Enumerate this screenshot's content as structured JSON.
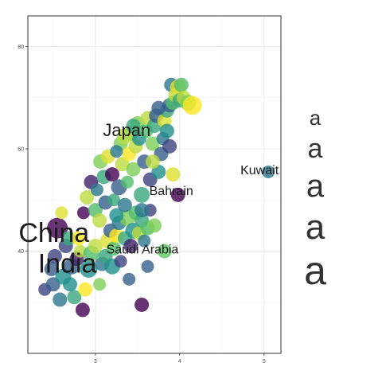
{
  "chart_data": {
    "type": "scatter",
    "title": "",
    "xlabel": "",
    "ylabel": "",
    "xlim": [
      2.2,
      5.2
    ],
    "ylim": [
      20,
      86
    ],
    "x_ticks": [
      3,
      4,
      5
    ],
    "y_ticks": [
      40,
      60,
      80
    ],
    "grid": true,
    "legend": {
      "position": "right",
      "glyph": "a",
      "entries": 5
    },
    "palette": [
      "#440154",
      "#3b528b",
      "#21908c",
      "#5dc863",
      "#fde725"
    ],
    "annotations": [
      {
        "text": "Kuwait",
        "x": 4.72,
        "y": 55.0,
        "size": 16
      },
      {
        "text": "Japan",
        "x": 3.09,
        "y": 62.5,
        "size": 22
      },
      {
        "text": "Bahrain",
        "x": 3.64,
        "y": 51.0,
        "size": 16
      },
      {
        "text": "China",
        "x": 2.09,
        "y": 41.8,
        "size": 34
      },
      {
        "text": "Saudi Arabia",
        "x": 3.13,
        "y": 39.5,
        "size": 16
      },
      {
        "text": "India",
        "x": 2.32,
        "y": 35.8,
        "size": 34
      }
    ],
    "points": [
      [
        2.55,
        44.5,
        0.0,
        13
      ],
      [
        2.4,
        32.5,
        0.2,
        8
      ],
      [
        2.5,
        33.5,
        0.3,
        9
      ],
      [
        2.58,
        30.5,
        0.4,
        9
      ],
      [
        2.62,
        35.0,
        0.5,
        10
      ],
      [
        2.65,
        41.0,
        0.2,
        9
      ],
      [
        2.72,
        37.0,
        0.3,
        10
      ],
      [
        2.75,
        31.0,
        0.6,
        9
      ],
      [
        2.78,
        38.5,
        0.1,
        9
      ],
      [
        2.82,
        40.0,
        0.9,
        8
      ],
      [
        2.85,
        28.5,
        0.0,
        9
      ],
      [
        2.88,
        32.5,
        1.0,
        9
      ],
      [
        2.92,
        36.5,
        0.5,
        11
      ],
      [
        2.95,
        39.5,
        0.7,
        10
      ],
      [
        3.0,
        41.0,
        0.9,
        9
      ],
      [
        3.05,
        33.5,
        0.8,
        8
      ],
      [
        3.08,
        37.5,
        0.4,
        9
      ],
      [
        3.12,
        39.0,
        0.6,
        9
      ],
      [
        3.15,
        42.0,
        0.95,
        10
      ],
      [
        3.18,
        44.0,
        0.3,
        9
      ],
      [
        3.2,
        37.0,
        0.5,
        10
      ],
      [
        3.22,
        40.5,
        0.7,
        9
      ],
      [
        3.25,
        43.0,
        1.0,
        9
      ],
      [
        3.28,
        45.5,
        0.4,
        9
      ],
      [
        3.3,
        38.0,
        0.2,
        8
      ],
      [
        3.35,
        42.5,
        0.6,
        9
      ],
      [
        3.38,
        46.5,
        0.8,
        10
      ],
      [
        3.4,
        34.5,
        0.3,
        8
      ],
      [
        3.42,
        41.0,
        0.1,
        9
      ],
      [
        3.45,
        44.0,
        0.5,
        10
      ],
      [
        3.48,
        47.5,
        0.7,
        9
      ],
      [
        3.52,
        43.5,
        0.9,
        9
      ],
      [
        3.55,
        46.0,
        0.6,
        9
      ],
      [
        3.58,
        42.0,
        0.4,
        8
      ],
      [
        3.62,
        44.5,
        0.7,
        9
      ],
      [
        3.65,
        48.0,
        0.2,
        8
      ],
      [
        3.7,
        45.0,
        0.8,
        9
      ],
      [
        3.55,
        29.5,
        0.0,
        9
      ],
      [
        3.62,
        37.0,
        0.3,
        8
      ],
      [
        3.82,
        40.0,
        0.75,
        9
      ],
      [
        2.48,
        36.5,
        0.3,
        9
      ],
      [
        2.52,
        39.0,
        0.2,
        9
      ],
      [
        2.6,
        47.5,
        0.95,
        8
      ],
      [
        2.68,
        42.5,
        0.6,
        9
      ],
      [
        2.7,
        33.5,
        0.5,
        9
      ],
      [
        2.8,
        42.5,
        1.0,
        9
      ],
      [
        2.86,
        47.5,
        0.0,
        8
      ],
      [
        2.9,
        50.5,
        0.9,
        9
      ],
      [
        2.95,
        53.5,
        0.1,
        9
      ],
      [
        3.0,
        48.0,
        0.7,
        9
      ],
      [
        3.02,
        52.0,
        0.4,
        8
      ],
      [
        3.05,
        46.0,
        0.9,
        9
      ],
      [
        3.06,
        57.5,
        0.8,
        9
      ],
      [
        3.1,
        54.5,
        0.6,
        9
      ],
      [
        3.12,
        49.5,
        0.3,
        9
      ],
      [
        3.15,
        58.5,
        0.95,
        9
      ],
      [
        3.2,
        55.0,
        0.0,
        9
      ],
      [
        3.22,
        50.0,
        0.6,
        8
      ],
      [
        3.25,
        47.0,
        0.5,
        9
      ],
      [
        3.28,
        52.5,
        0.3,
        10
      ],
      [
        3.3,
        61.0,
        0.8,
        9
      ],
      [
        3.32,
        57.0,
        0.9,
        9
      ],
      [
        3.35,
        49.0,
        0.4,
        9
      ],
      [
        3.38,
        53.5,
        0.7,
        8
      ],
      [
        3.4,
        59.0,
        1.0,
        9
      ],
      [
        3.42,
        63.0,
        0.7,
        9
      ],
      [
        3.45,
        56.0,
        0.8,
        9
      ],
      [
        3.48,
        60.5,
        0.9,
        9
      ],
      [
        3.5,
        65.0,
        0.8,
        9
      ],
      [
        3.52,
        62.0,
        0.5,
        9
      ],
      [
        3.55,
        51.0,
        0.6,
        10
      ],
      [
        3.55,
        48.0,
        0.4,
        9
      ],
      [
        3.58,
        57.5,
        0.3,
        9
      ],
      [
        3.6,
        63.5,
        0.7,
        9
      ],
      [
        3.62,
        66.0,
        0.9,
        9
      ],
      [
        3.65,
        54.0,
        0.2,
        9
      ],
      [
        3.68,
        61.0,
        0.8,
        9
      ],
      [
        3.7,
        64.5,
        0.6,
        9
      ],
      [
        3.72,
        66.5,
        0.3,
        9
      ],
      [
        3.75,
        55.5,
        0.5,
        9
      ],
      [
        3.78,
        59.0,
        0.3,
        9
      ],
      [
        3.8,
        62.0,
        0.4,
        8
      ],
      [
        3.82,
        65.5,
        0.95,
        9
      ],
      [
        3.85,
        67.5,
        0.6,
        9
      ],
      [
        3.88,
        68.5,
        0.3,
        9
      ],
      [
        3.9,
        72.5,
        0.4,
        9
      ],
      [
        3.92,
        69.0,
        0.7,
        9
      ],
      [
        3.95,
        70.5,
        0.9,
        9
      ],
      [
        3.98,
        72.0,
        0.95,
        10
      ],
      [
        4.0,
        69.5,
        0.6,
        9
      ],
      [
        4.02,
        72.5,
        0.7,
        9
      ],
      [
        4.05,
        70.0,
        0.9,
        9
      ],
      [
        4.1,
        69.0,
        0.8,
        10
      ],
      [
        4.15,
        68.5,
        1.0,
        12
      ],
      [
        3.92,
        55.0,
        0.95,
        9
      ],
      [
        3.98,
        51.0,
        0.0,
        9
      ],
      [
        5.05,
        55.5,
        0.4,
        8
      ],
      [
        3.35,
        62.5,
        0.9,
        10
      ],
      [
        3.45,
        64.5,
        0.6,
        9
      ],
      [
        3.25,
        59.5,
        0.4,
        8
      ],
      [
        3.85,
        63.5,
        0.5,
        9
      ],
      [
        3.75,
        68.0,
        0.3,
        9
      ],
      [
        3.88,
        60.5,
        0.2,
        9
      ],
      [
        3.68,
        57.5,
        0.9,
        9
      ]
    ]
  }
}
